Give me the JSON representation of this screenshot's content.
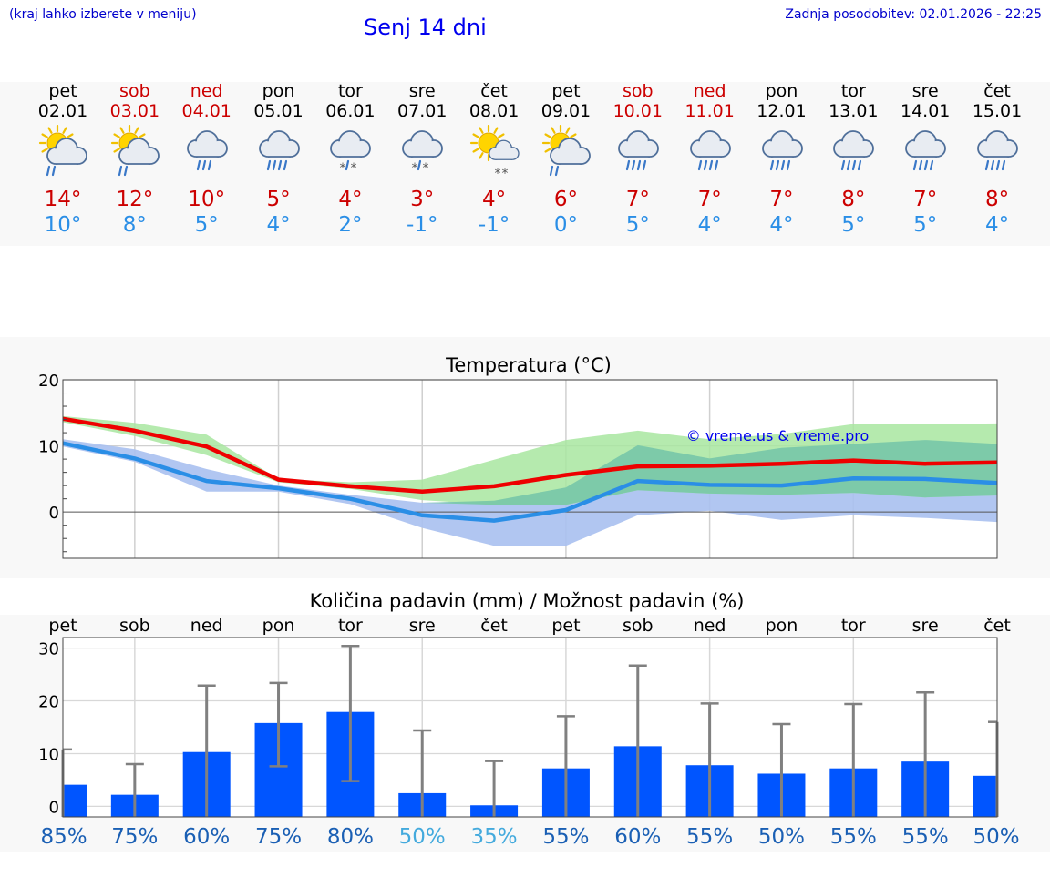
{
  "header": {
    "hint": "(kraj lahko izberete v meniju)",
    "title": "Senj 14 dni",
    "updated": "Zadnja posodobitev: 02.01.2026 - 22:25"
  },
  "days": [
    {
      "name": "pet",
      "date": "02.01",
      "weekend": false,
      "icon": "sun-cloud-rain-icon",
      "tmax": "14°",
      "tmin": "10°"
    },
    {
      "name": "sob",
      "date": "03.01",
      "weekend": true,
      "icon": "sun-cloud-rain-icon",
      "tmax": "12°",
      "tmin": "8°"
    },
    {
      "name": "ned",
      "date": "04.01",
      "weekend": true,
      "icon": "cloud-rain-icon",
      "tmax": "10°",
      "tmin": "5°"
    },
    {
      "name": "pon",
      "date": "05.01",
      "weekend": false,
      "icon": "cloud-heavy-rain-icon",
      "tmax": "5°",
      "tmin": "4°"
    },
    {
      "name": "tor",
      "date": "06.01",
      "weekend": false,
      "icon": "cloud-sleet-icon",
      "tmax": "4°",
      "tmin": "2°"
    },
    {
      "name": "sre",
      "date": "07.01",
      "weekend": false,
      "icon": "cloud-sleet-icon",
      "tmax": "3°",
      "tmin": "-1°"
    },
    {
      "name": "čet",
      "date": "08.01",
      "weekend": false,
      "icon": "sun-cloud-snow-icon",
      "tmax": "4°",
      "tmin": "-1°"
    },
    {
      "name": "pet",
      "date": "09.01",
      "weekend": false,
      "icon": "sun-cloud-rain-icon",
      "tmax": "6°",
      "tmin": "0°"
    },
    {
      "name": "sob",
      "date": "10.01",
      "weekend": true,
      "icon": "cloud-heavy-rain-icon",
      "tmax": "7°",
      "tmin": "5°"
    },
    {
      "name": "ned",
      "date": "11.01",
      "weekend": true,
      "icon": "cloud-heavy-rain-icon",
      "tmax": "7°",
      "tmin": "4°"
    },
    {
      "name": "pon",
      "date": "12.01",
      "weekend": false,
      "icon": "cloud-heavy-rain-icon",
      "tmax": "7°",
      "tmin": "4°"
    },
    {
      "name": "tor",
      "date": "13.01",
      "weekend": false,
      "icon": "cloud-heavy-rain-icon",
      "tmax": "8°",
      "tmin": "5°"
    },
    {
      "name": "sre",
      "date": "14.01",
      "weekend": false,
      "icon": "cloud-heavy-rain-icon",
      "tmax": "7°",
      "tmin": "5°"
    },
    {
      "name": "čet",
      "date": "15.01",
      "weekend": false,
      "icon": "cloud-heavy-rain-icon",
      "tmax": "8°",
      "tmin": "4°"
    }
  ],
  "colors": {
    "max_line": "#ee0000",
    "min_line": "#2a8ee6",
    "max_band": "#a8e6a0",
    "min_band": "#a8c0f0",
    "overlap_band": "#78c8a8",
    "bar": "#0055ff",
    "whisker": "#808080",
    "pct_dark": "#1a5fb4",
    "pct_light": "#44aadd"
  },
  "chart_data": [
    {
      "type": "line",
      "title": "Temperatura (°C)",
      "watermark": "© vreme.us & vreme.pro",
      "ylim": [
        -7,
        20
      ],
      "yticks": [
        0,
        10,
        20
      ],
      "x_index": [
        0,
        1,
        2,
        3,
        4,
        5,
        6,
        7,
        8,
        9,
        10,
        11,
        12,
        13
      ],
      "series": [
        {
          "name": "max",
          "values": [
            14.1,
            12.3,
            9.9,
            4.9,
            3.9,
            3.1,
            3.9,
            5.6,
            6.9,
            7.0,
            7.3,
            7.8,
            7.3,
            7.5
          ]
        },
        {
          "name": "min",
          "values": [
            10.4,
            8.1,
            4.7,
            3.6,
            2.0,
            -0.5,
            -1.3,
            0.3,
            4.7,
            4.1,
            4.0,
            5.1,
            5.0,
            4.4
          ]
        }
      ],
      "bands": [
        {
          "name": "max_range",
          "low": [
            13.6,
            11.5,
            8.6,
            4.5,
            3.5,
            1.8,
            1.1,
            1.1,
            3.3,
            2.8,
            2.6,
            2.9,
            2.2,
            2.5
          ],
          "high": [
            14.5,
            13.5,
            11.7,
            5.0,
            4.5,
            4.9,
            7.9,
            10.9,
            12.3,
            11.0,
            11.8,
            13.3,
            13.3,
            13.4
          ]
        },
        {
          "name": "min_range",
          "low": [
            9.9,
            7.6,
            3.1,
            3.1,
            1.2,
            -2.4,
            -5.1,
            -5.1,
            -0.5,
            0.2,
            -1.2,
            -0.5,
            -0.9,
            -1.5
          ],
          "high": [
            11.0,
            9.5,
            6.5,
            4.0,
            2.6,
            1.4,
            1.7,
            3.7,
            10.1,
            8.1,
            9.7,
            10.3,
            10.9,
            10.3
          ]
        }
      ]
    },
    {
      "type": "bar",
      "title": "Količina padavin (mm) / Možnost padavin (%)",
      "categories": [
        "pet",
        "sob",
        "ned",
        "pon",
        "tor",
        "sre",
        "čet",
        "pet",
        "sob",
        "ned",
        "pon",
        "tor",
        "sre",
        "čet"
      ],
      "ylim": [
        -2,
        32
      ],
      "yticks": [
        0,
        10,
        20,
        30
      ],
      "values": [
        4.1,
        2.2,
        10.3,
        15.8,
        17.9,
        2.5,
        0.2,
        7.2,
        11.4,
        7.8,
        6.2,
        7.2,
        8.5,
        5.8
      ],
      "err_low": [
        0,
        0,
        0,
        7.6,
        4.8,
        0,
        0,
        0,
        0,
        0,
        0,
        0,
        0,
        0
      ],
      "err_high": [
        10.8,
        8.0,
        22.9,
        23.4,
        30.4,
        14.4,
        8.6,
        17.1,
        26.7,
        19.5,
        15.6,
        19.4,
        21.6,
        16.0
      ],
      "probability": [
        "85%",
        "75%",
        "60%",
        "75%",
        "80%",
        "50%",
        "35%",
        "55%",
        "60%",
        "55%",
        "50%",
        "55%",
        "55%",
        "50%"
      ],
      "probability_light": [
        false,
        false,
        false,
        false,
        false,
        true,
        true,
        false,
        false,
        false,
        false,
        false,
        false,
        false
      ]
    }
  ]
}
